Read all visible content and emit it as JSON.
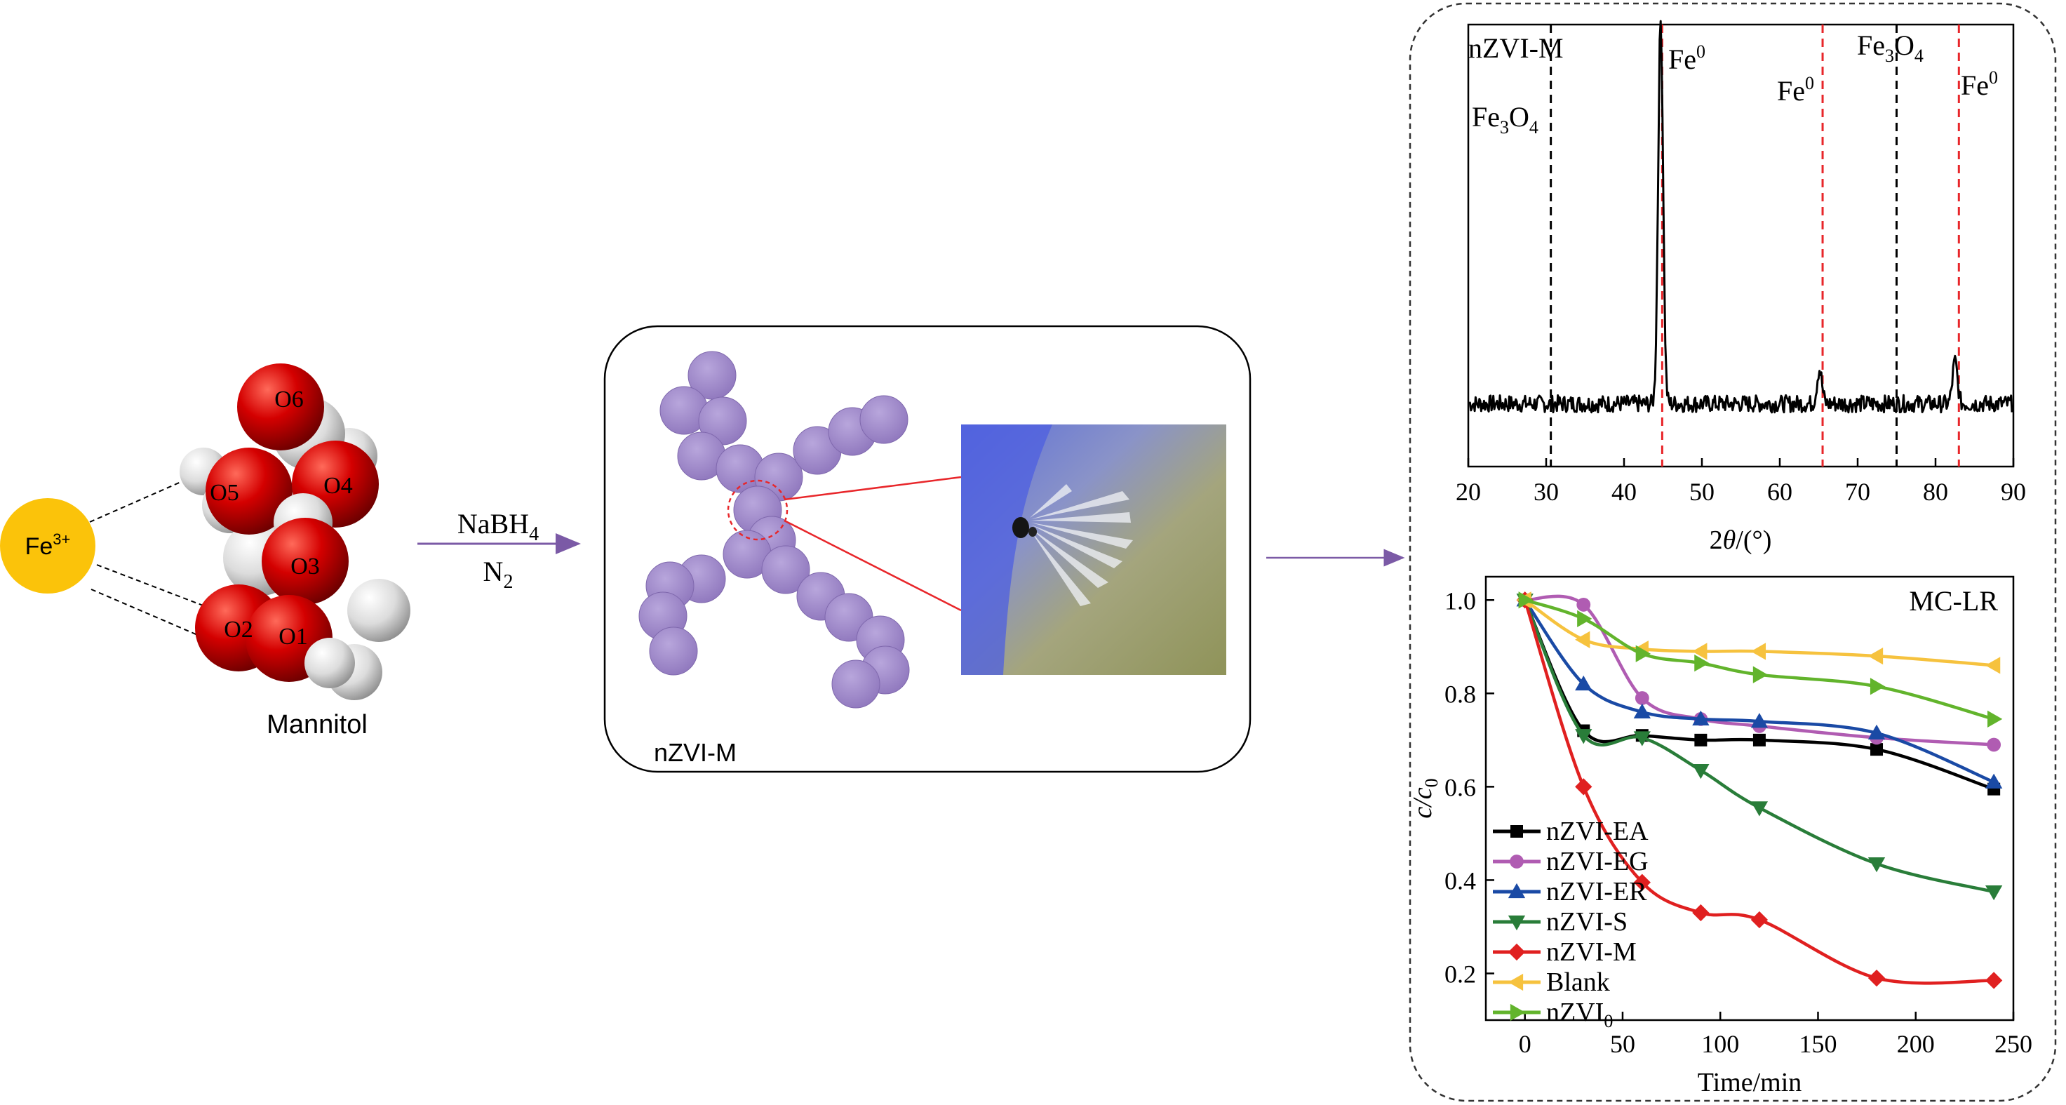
{
  "scheme": {
    "fe_ion": {
      "base": "Fe",
      "sup": "3+",
      "color": "#fbc30a"
    },
    "mannitol": {
      "label": "Mannitol",
      "oxygen_labels": [
        "O1",
        "O2",
        "O3",
        "O4",
        "O5",
        "O6"
      ],
      "oxygen_color": "#d40000",
      "label_color": "#f5d020"
    },
    "reaction": {
      "reagent_base": "NaBH",
      "reagent_sub": "4",
      "atmosphere_base": "N",
      "atmosphere_sub": "2"
    },
    "product": {
      "label": "nZVI-M",
      "particle_color": "#9c84c6"
    },
    "arrow_color": "#7b5aa6"
  },
  "xrd_chart": {
    "chart_data": {
      "type": "line",
      "sample_label": "nZVI-M",
      "xlabel": "2θ/(°)",
      "xlim": [
        20,
        90
      ],
      "x_ticks": [
        20,
        30,
        40,
        50,
        60,
        70,
        80,
        90
      ],
      "y_axis_visible": false,
      "baseline": 0.1,
      "peaks": [
        {
          "x": 44.7,
          "height": 1.0,
          "width": 0.45
        },
        {
          "x": 65.1,
          "height": 0.09,
          "width": 0.45
        },
        {
          "x": 82.5,
          "height": 0.11,
          "width": 0.45
        }
      ],
      "reference_lines": [
        {
          "x": 30.6,
          "phase": "Fe3O4",
          "color": "#000000"
        },
        {
          "x": 44.9,
          "phase": "Fe0",
          "color": "#e8262a"
        },
        {
          "x": 65.5,
          "phase": "Fe0",
          "color": "#e8262a"
        },
        {
          "x": 75.0,
          "phase": "Fe3O4",
          "color": "#000000"
        },
        {
          "x": 83.0,
          "phase": "Fe0",
          "color": "#e8262a"
        }
      ],
      "annotations": [
        {
          "base": "Fe",
          "sup": "0",
          "sub": ""
        },
        {
          "base": "Fe",
          "sup": "0",
          "sub": ""
        },
        {
          "base": "Fe",
          "sup": "0",
          "sub": ""
        },
        {
          "base": "Fe",
          "sub": "3",
          "mid": "O",
          "sub2": "4"
        },
        {
          "base": "Fe",
          "sub": "3",
          "mid": "O",
          "sub2": "4"
        }
      ]
    }
  },
  "removal_chart": {
    "chart_data": {
      "type": "line",
      "title": "MC-LR",
      "xlabel": "Time/min",
      "ylabel": "c/c0",
      "xlim": [
        -20,
        250
      ],
      "ylim": [
        0.1,
        1.05
      ],
      "x_ticks": [
        0,
        50,
        100,
        150,
        200,
        250
      ],
      "y_ticks": [
        0.2,
        0.4,
        0.6,
        0.8,
        1.0
      ],
      "y_tick_labels": [
        "0.2",
        "0.4",
        "0.6",
        "0.8",
        "1.0"
      ],
      "x": [
        0,
        30,
        60,
        90,
        120,
        180,
        240
      ],
      "legend_position": "left",
      "series": [
        {
          "name": "nZVI-EA",
          "color": "#000000",
          "marker": "square",
          "values": [
            1.0,
            0.72,
            0.71,
            0.7,
            0.7,
            0.68,
            0.595
          ]
        },
        {
          "name": "nZVI-EG",
          "color": "#b05cb2",
          "marker": "circle",
          "values": [
            1.0,
            0.99,
            0.79,
            0.745,
            0.73,
            0.705,
            0.69
          ]
        },
        {
          "name": "nZVI-ER",
          "color": "#1a4aa5",
          "marker": "triangle-up",
          "values": [
            1.0,
            0.82,
            0.76,
            0.745,
            0.74,
            0.715,
            0.61
          ]
        },
        {
          "name": "nZVI-S",
          "color": "#297d39",
          "marker": "triangle-down",
          "values": [
            1.0,
            0.71,
            0.705,
            0.635,
            0.555,
            0.435,
            0.375
          ]
        },
        {
          "name": "nZVI-M",
          "color": "#e02020",
          "marker": "diamond",
          "values": [
            1.0,
            0.6,
            0.395,
            0.33,
            0.315,
            0.19,
            0.185
          ]
        },
        {
          "name": "Blank",
          "color": "#f6c23e",
          "marker": "triangle-left",
          "values": [
            1.0,
            0.915,
            0.895,
            0.89,
            0.89,
            0.88,
            0.86
          ]
        },
        {
          "name_base": "nZVI",
          "name_sub": "0",
          "color": "#62b42c",
          "marker": "triangle-right",
          "values": [
            1.0,
            0.96,
            0.885,
            0.865,
            0.84,
            0.815,
            0.745
          ]
        }
      ]
    }
  }
}
